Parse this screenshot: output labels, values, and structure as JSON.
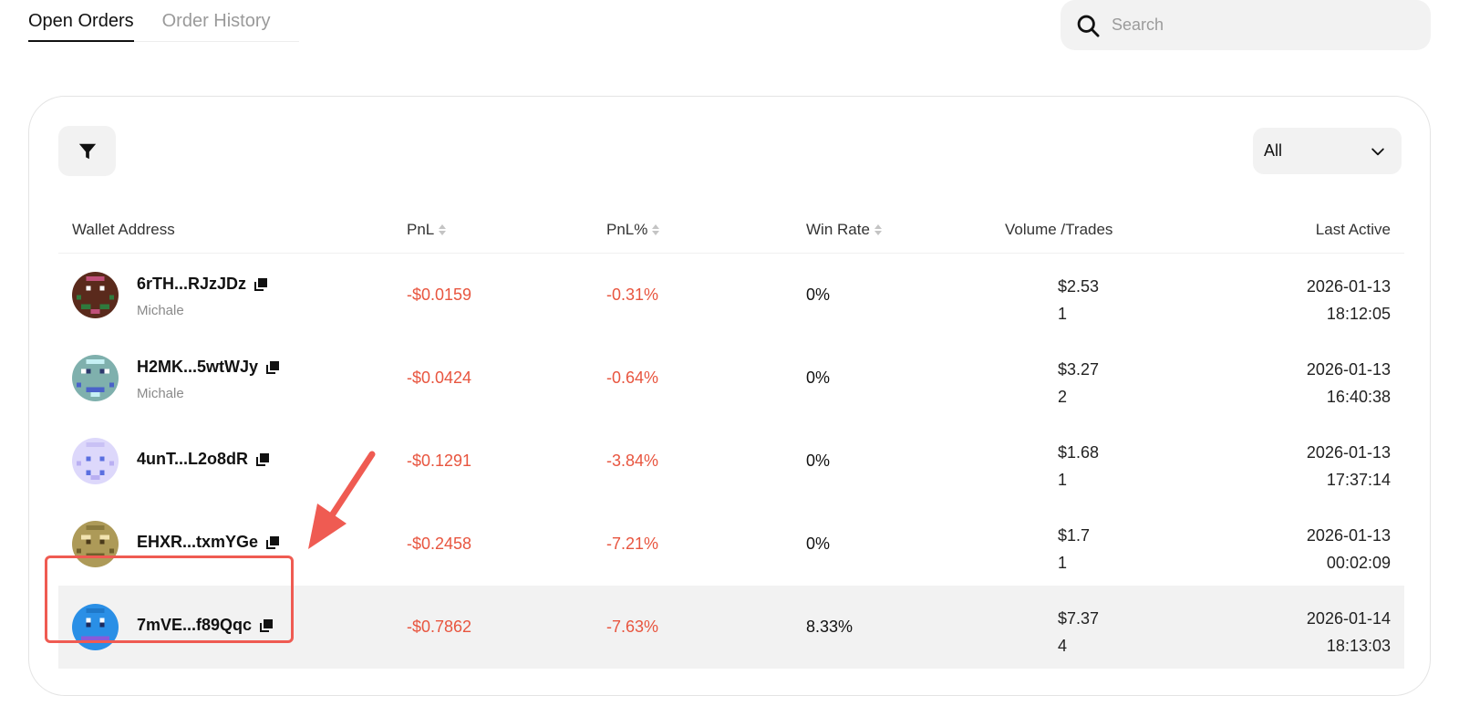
{
  "tabs": [
    {
      "label": "Open Orders",
      "active": true
    },
    {
      "label": "Order History",
      "active": false
    }
  ],
  "search": {
    "placeholder": "Search",
    "value": ""
  },
  "filter_icon": "filter-funnel-icon",
  "select": {
    "value": "All"
  },
  "columns": {
    "wallet": "Wallet Address",
    "pnl": "PnL",
    "pnl_pct": "PnL%",
    "win_rate": "Win Rate",
    "volume_trades": "Volume /Trades",
    "last_active": "Last Active"
  },
  "rows": [
    {
      "address": "6rTH...RJzJDz",
      "alias": "Michale",
      "pnl": "-$0.0159",
      "pnl_pct": "-0.31%",
      "win_rate": "0%",
      "volume": "$2.53",
      "trades": "1",
      "date": "2026-01-13",
      "time": "18:12:05",
      "avatar_color": "#5a2a1c"
    },
    {
      "address": "H2MK...5wtWJy",
      "alias": "Michale",
      "pnl": "-$0.0424",
      "pnl_pct": "-0.64%",
      "win_rate": "0%",
      "volume": "$3.27",
      "trades": "2",
      "date": "2026-01-13",
      "time": "16:40:38",
      "avatar_color": "#7fb0ad"
    },
    {
      "address": "4unT...L2o8dR",
      "alias": "",
      "pnl": "-$0.1291",
      "pnl_pct": "-3.84%",
      "win_rate": "0%",
      "volume": "$1.68",
      "trades": "1",
      "date": "2026-01-13",
      "time": "17:37:14",
      "avatar_color": "#ddd8fb"
    },
    {
      "address": "EHXR...txmYGe",
      "alias": "",
      "pnl": "-$0.2458",
      "pnl_pct": "-7.21%",
      "win_rate": "0%",
      "volume": "$1.7",
      "trades": "1",
      "date": "2026-01-13",
      "time": "00:02:09",
      "avatar_color": "#ad9a58"
    },
    {
      "address": "7mVE...f89Qqc",
      "alias": "",
      "pnl": "-$0.7862",
      "pnl_pct": "-7.63%",
      "win_rate": "8.33%",
      "volume": "$7.37",
      "trades": "4",
      "date": "2026-01-14",
      "time": "18:13:03",
      "avatar_color": "#2a8fe6"
    }
  ],
  "colors": {
    "negative": "#e8553f",
    "annotation": "#ef5b52",
    "highlight_row": "#f2f2f2"
  }
}
